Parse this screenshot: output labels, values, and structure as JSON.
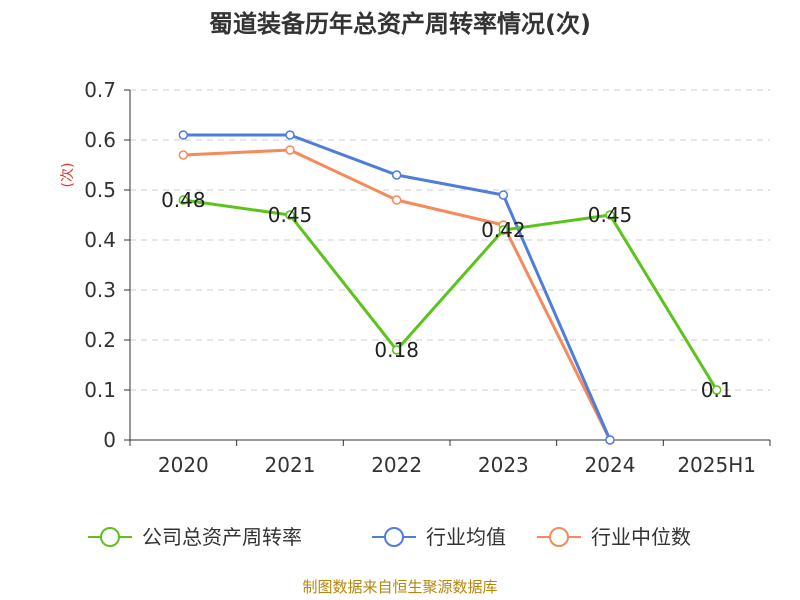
{
  "chart_data": {
    "type": "line",
    "title": "蜀道装备历年总资产周转率情况(次)",
    "ylabel": "(次)",
    "categories": [
      "2020",
      "2021",
      "2022",
      "2023",
      "2024",
      "2025H1"
    ],
    "ylim": [
      0,
      0.7
    ],
    "yticks": [
      "0",
      "0.1",
      "0.2",
      "0.3",
      "0.4",
      "0.5",
      "0.6",
      "0.7"
    ],
    "grid": true,
    "legend_position": "bottom",
    "series": [
      {
        "name": "公司总资产周转率",
        "color": "#5cc31c",
        "values": [
          0.48,
          0.45,
          0.18,
          0.42,
          0.45,
          0.1
        ],
        "labels": [
          "0.48",
          "0.45",
          "0.18",
          "0.42",
          "0.45",
          "0.1"
        ]
      },
      {
        "name": "行业均值",
        "color": "#4e7ddb",
        "values": [
          0.61,
          0.61,
          0.53,
          0.49,
          0,
          null
        ]
      },
      {
        "name": "行业中位数",
        "color": "#f58a5a",
        "values": [
          0.57,
          0.58,
          0.48,
          0.43,
          0,
          null
        ]
      }
    ],
    "source": "制图数据来自恒生聚源数据库"
  }
}
